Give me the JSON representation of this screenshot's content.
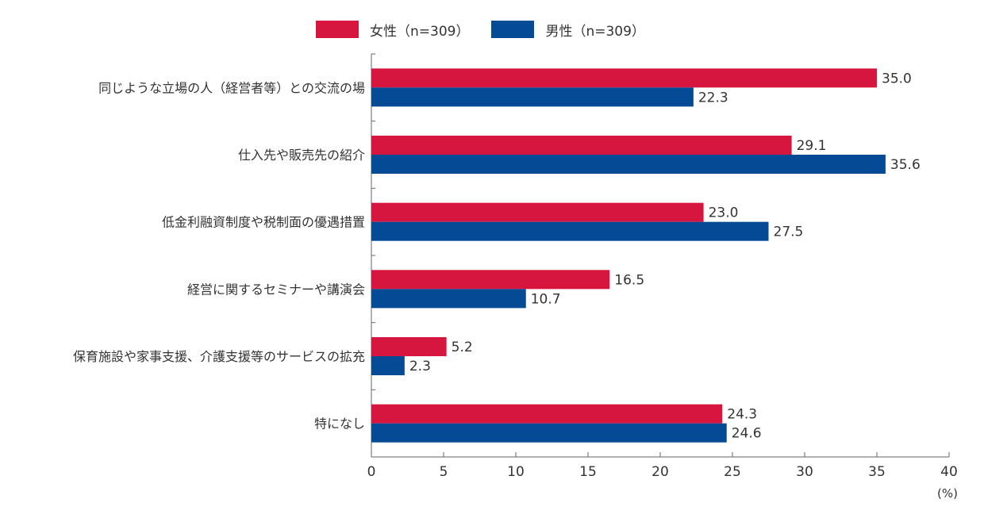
{
  "colors": {
    "female": "#d7163f",
    "male": "#054a94"
  },
  "chart_data": {
    "type": "bar",
    "orientation": "horizontal",
    "categories": [
      "同じような立場の人（経営者等）との交流の場",
      "仕入先や販売先の紹介",
      "低金利融資制度や税制面の優遇措置",
      "経営に関するセミナーや講演会",
      "保育施設や家事支援、介護支援等のサービスの拡充",
      "特になし"
    ],
    "series": [
      {
        "name": "女性（n=309）",
        "values": [
          35.0,
          29.1,
          23.0,
          16.5,
          5.2,
          24.3
        ]
      },
      {
        "name": "男性（n=309）",
        "values": [
          22.3,
          35.6,
          27.5,
          10.7,
          2.3,
          24.6
        ]
      }
    ],
    "value_labels": [
      [
        "35.0",
        "29.1",
        "23.0",
        "16.5",
        "5.2",
        "24.3"
      ],
      [
        "22.3",
        "35.6",
        "27.5",
        "10.7",
        "2.3",
        "24.6"
      ]
    ],
    "xlim": [
      0,
      40
    ],
    "xticks": [
      "0",
      "5",
      "10",
      "15",
      "20",
      "25",
      "30",
      "35",
      "40"
    ],
    "xunit": "(%)",
    "legend_position": "top",
    "grid": false
  }
}
